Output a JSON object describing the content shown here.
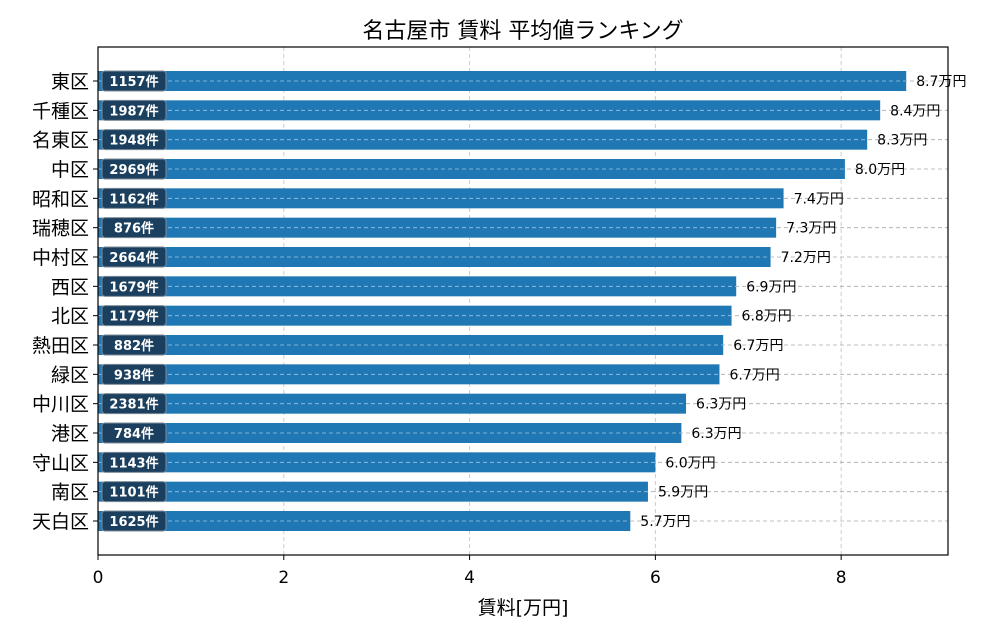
{
  "chart_data": {
    "type": "bar",
    "orientation": "horizontal",
    "title": "名古屋市 賃料 平均値ランキング",
    "xlabel": "賃料[万円]",
    "ylabel": "",
    "xlim": [
      0,
      9.15
    ],
    "xticks": [
      0,
      2,
      4,
      6,
      8
    ],
    "grid": true,
    "color": "#1f77b4",
    "badge_color": "#1b3f5e",
    "categories": [
      "東区",
      "千種区",
      "名東区",
      "中区",
      "昭和区",
      "瑞穂区",
      "中村区",
      "西区",
      "北区",
      "熱田区",
      "緑区",
      "中川区",
      "港区",
      "守山区",
      "南区",
      "天白区"
    ],
    "values": [
      8.7,
      8.42,
      8.28,
      8.04,
      7.38,
      7.3,
      7.24,
      6.87,
      6.82,
      6.73,
      6.69,
      6.33,
      6.28,
      6.0,
      5.92,
      5.73
    ],
    "value_labels": [
      "8.7万円",
      "8.4万円",
      "8.3万円",
      "8.0万円",
      "7.4万円",
      "7.3万円",
      "7.2万円",
      "6.9万円",
      "6.8万円",
      "6.7万円",
      "6.7万円",
      "6.3万円",
      "6.3万円",
      "6.0万円",
      "5.9万円",
      "5.7万円"
    ],
    "counts": [
      "1157件",
      "1987件",
      "1948件",
      "2969件",
      "1162件",
      "876件",
      "2664件",
      "1679件",
      "1179件",
      "882件",
      "938件",
      "2381件",
      "784件",
      "1143件",
      "1101件",
      "1625件"
    ]
  }
}
